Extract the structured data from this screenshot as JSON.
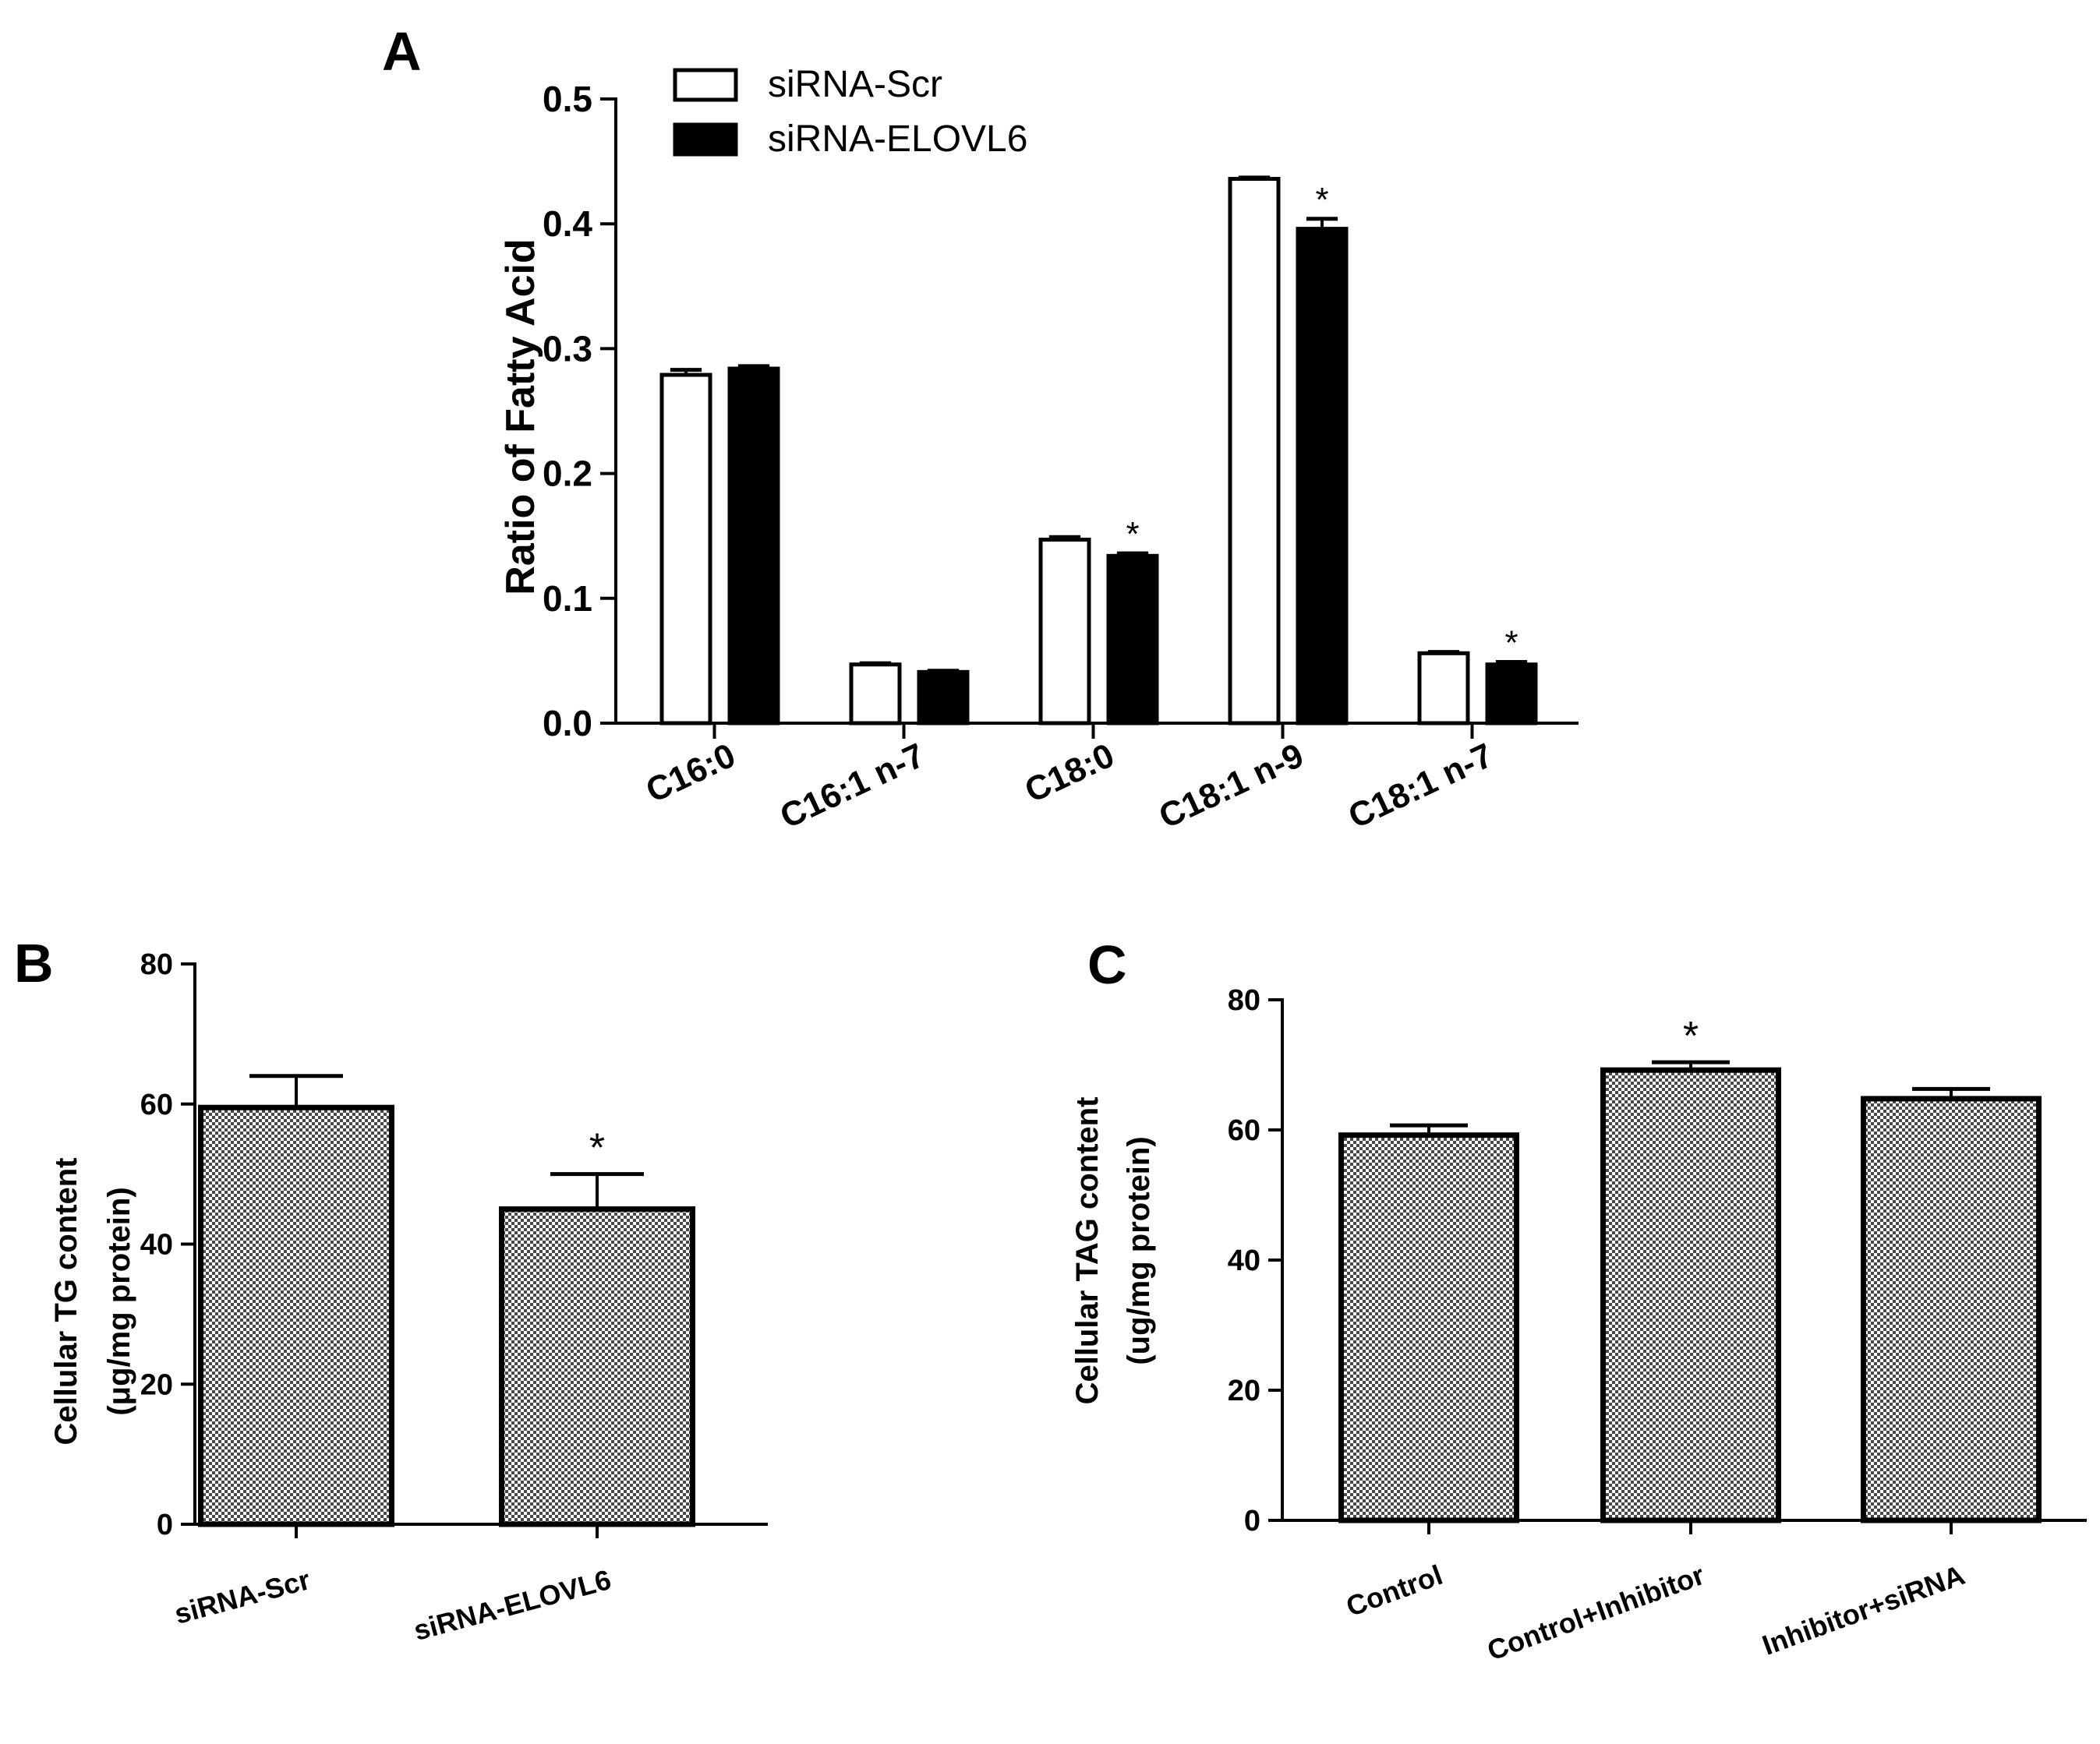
{
  "chart_data": [
    {
      "panel": "A",
      "type": "bar",
      "title": "",
      "xlabel": "",
      "ylabel": "Ratio of Fatty Acid",
      "ylim": [
        0,
        0.5
      ],
      "yticks": [
        "0.0",
        "0.1",
        "0.2",
        "0.3",
        "0.4",
        "0.5"
      ],
      "categories": [
        "C16:0",
        "C16:1 n-7",
        "C18:0",
        "C18:1 n-9",
        "C18:1 n-7"
      ],
      "series": [
        {
          "name": "siRNA-Scr",
          "fill": "#ffffff",
          "values": [
            0.279,
            0.047,
            0.147,
            0.436,
            0.056
          ],
          "errors": [
            0.004,
            0.001,
            0.002,
            0.001,
            0.001
          ]
        },
        {
          "name": "siRNA-ELOVL6",
          "fill": "#000000",
          "values": [
            0.284,
            0.041,
            0.134,
            0.396,
            0.047
          ],
          "errors": [
            0.002,
            0.001,
            0.002,
            0.008,
            0.002
          ]
        }
      ],
      "significance": [
        "",
        "",
        "*",
        "*",
        "*"
      ],
      "legend_position": "top-left"
    },
    {
      "panel": "B",
      "type": "bar",
      "title": "",
      "xlabel": "",
      "ylabel": "Cellular TG content",
      "ylabel2": "(μg/mg protein)",
      "ylim": [
        0,
        80
      ],
      "yticks": [
        "0",
        "20",
        "40",
        "60",
        "80"
      ],
      "categories": [
        "siRNA-Scr",
        "siRNA-ELOVL6"
      ],
      "series": [
        {
          "name": "Cellular TG content",
          "fill": "checkered",
          "values": [
            59.5,
            45.0
          ],
          "errors": [
            4.5,
            5.0
          ]
        }
      ],
      "significance": [
        "",
        "*"
      ]
    },
    {
      "panel": "C",
      "type": "bar",
      "title": "",
      "xlabel": "",
      "ylabel": "Cellular TAG content",
      "ylabel2": "(ug/mg protein)",
      "ylim": [
        0,
        80
      ],
      "yticks": [
        "0",
        "20",
        "40",
        "60",
        "80"
      ],
      "categories": [
        "Control",
        "Control+Inhibitor",
        "Inhibitor+siRNA"
      ],
      "series": [
        {
          "name": "Cellular TAG content",
          "fill": "checkered",
          "values": [
            59.2,
            69.2,
            64.8
          ],
          "errors": [
            1.5,
            1.2,
            1.5
          ]
        }
      ],
      "significance": [
        "",
        "*",
        ""
      ]
    }
  ]
}
